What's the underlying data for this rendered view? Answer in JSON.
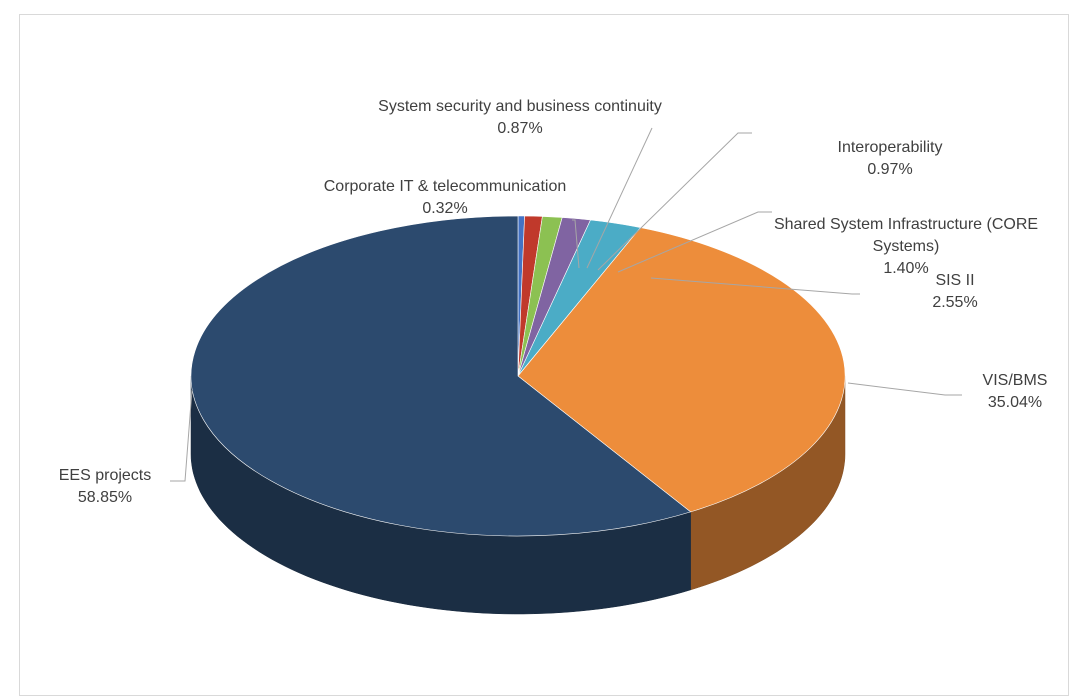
{
  "chart_data": {
    "type": "pie",
    "style": "3d",
    "legend": "none",
    "start_angle_deg": 90,
    "slices": [
      {
        "name": "Corporate  IT & telecommunication",
        "value": 0.32,
        "label": "0.32%",
        "color": "#4472c4"
      },
      {
        "name": "System security  and business continuity",
        "value": 0.87,
        "label": "0.87%",
        "color": "#c0392b"
      },
      {
        "name": "Interoperability",
        "value": 0.97,
        "label": "0.97%",
        "color": "#8cc152"
      },
      {
        "name": "Shared System Infrastructure  (CORE Systems)",
        "value": 1.4,
        "label": "1.40%",
        "color": "#8064a2"
      },
      {
        "name": "SIS II",
        "value": 2.55,
        "label": "2.55%",
        "color": "#4bacc6"
      },
      {
        "name": "VIS/BMS",
        "value": 35.04,
        "label": "35.04%",
        "color": "#ed8d3b"
      },
      {
        "name": "EES projects",
        "value": 58.85,
        "label": "58.85%",
        "color": "#2c4a6e"
      }
    ]
  }
}
